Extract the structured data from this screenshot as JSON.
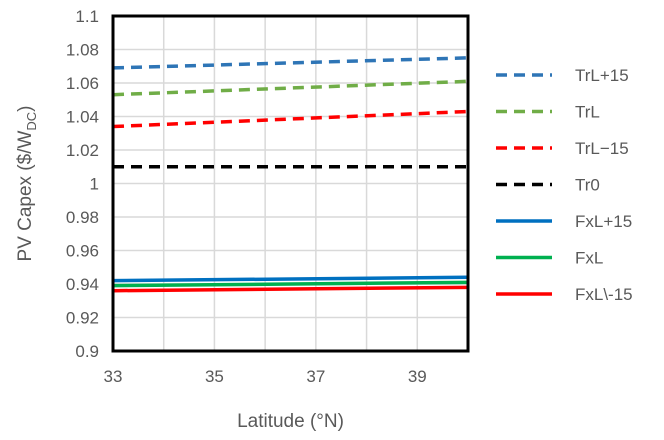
{
  "chart_data": {
    "type": "line",
    "xlabel": "Latitude (°N)",
    "ylabel": {
      "main": "PV Capex ($/W",
      "sub": "DC",
      "close": ")"
    },
    "xlim": [
      33,
      40
    ],
    "ylim": [
      0.9,
      1.1
    ],
    "x_ticks": [
      33,
      35,
      37,
      39
    ],
    "y_ticks": [
      0.9,
      0.92,
      0.94,
      0.96,
      0.98,
      1,
      1.02,
      1.04,
      1.06,
      1.08,
      1.1
    ],
    "y_tick_labels": [
      "0.9",
      "0.92",
      "0.94",
      "0.96",
      "0.98",
      "1",
      "1.02",
      "1.04",
      "1.06",
      "1.08",
      "1.1"
    ],
    "x_tick_labels": [
      "33",
      "35",
      "37",
      "39"
    ],
    "grid": true,
    "legend_position": "right",
    "series": [
      {
        "name": "TrL+15",
        "color": "#2E75B6",
        "dash": true,
        "x": [
          33,
          40
        ],
        "y": [
          1.069,
          1.075
        ]
      },
      {
        "name": "TrL",
        "color": "#70AD47",
        "dash": true,
        "x": [
          33,
          40
        ],
        "y": [
          1.053,
          1.061
        ]
      },
      {
        "name": "TrL−15",
        "color": "#FF0000",
        "dash": true,
        "x": [
          33,
          40
        ],
        "y": [
          1.034,
          1.043
        ]
      },
      {
        "name": "Tr0",
        "color": "#000000",
        "dash": true,
        "x": [
          33,
          40
        ],
        "y": [
          1.01,
          1.01
        ]
      },
      {
        "name": "FxL+15",
        "color": "#0070C0",
        "dash": false,
        "x": [
          33,
          40
        ],
        "y": [
          0.942,
          0.944
        ]
      },
      {
        "name": "FxL",
        "color": "#00B050",
        "dash": false,
        "x": [
          33,
          40
        ],
        "y": [
          0.939,
          0.941
        ]
      },
      {
        "name": "FxL\\-15",
        "color": "#FF0000",
        "dash": false,
        "x": [
          33,
          40
        ],
        "y": [
          0.936,
          0.938
        ]
      }
    ]
  }
}
